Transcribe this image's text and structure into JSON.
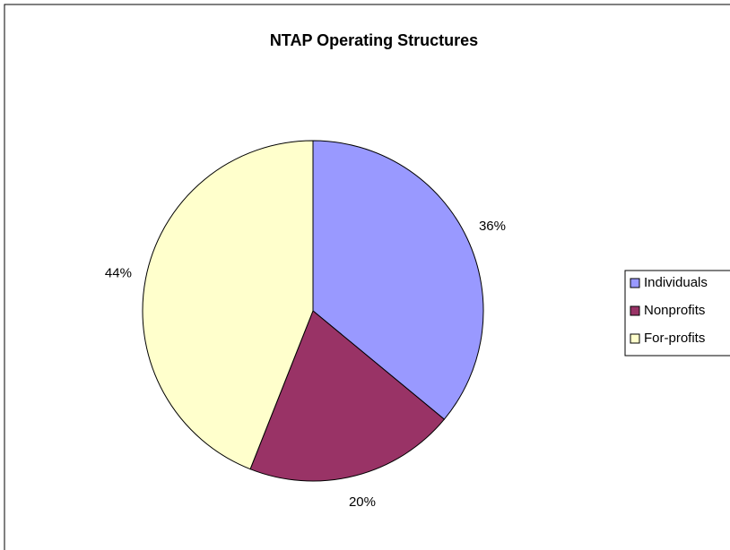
{
  "chart_data": {
    "type": "pie",
    "title": "NTAP Operating Structures",
    "categories": [
      "Individuals",
      "Nonprofits",
      "For-profits"
    ],
    "values": [
      36,
      20,
      44
    ],
    "value_labels": [
      "36%",
      "20%",
      "44%"
    ],
    "colors": [
      "#9999ff",
      "#993366",
      "#ffffcc"
    ],
    "legend": "right"
  }
}
